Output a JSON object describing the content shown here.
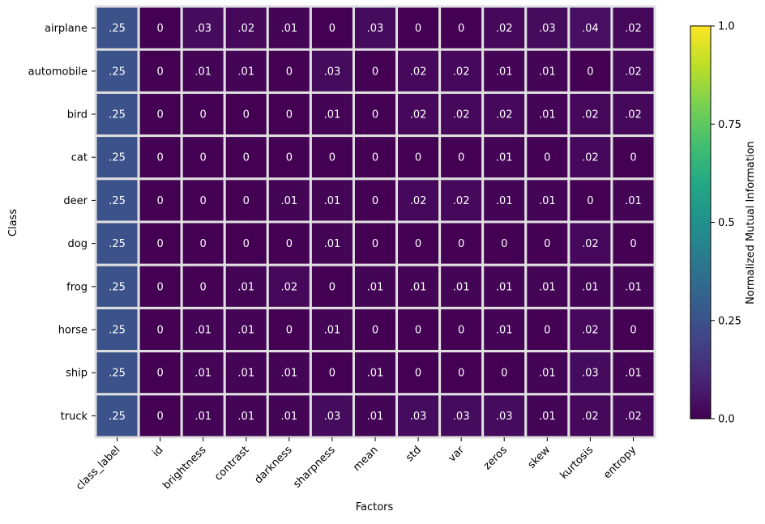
{
  "chart_data": {
    "type": "heatmap",
    "title": "",
    "xlabel": "Factors",
    "ylabel": "Class",
    "colorbar": {
      "label": "Normalized Mutual Information",
      "range": [
        0.0,
        1.0
      ],
      "ticks": [
        "0.0",
        "0.25",
        "0.5",
        "0.75",
        "1.0"
      ],
      "tick_values": [
        0,
        0.25,
        0.5,
        0.75,
        1.0
      ],
      "colormap": "viridis"
    },
    "x": [
      "class_label",
      "id",
      "brightness",
      "contrast",
      "darkness",
      "sharpness",
      "mean",
      "std",
      "var",
      "zeros",
      "skew",
      "kurtosis",
      "entropy"
    ],
    "y": [
      "airplane",
      "automobile",
      "bird",
      "cat",
      "deer",
      "dog",
      "frog",
      "horse",
      "ship",
      "truck"
    ],
    "values": [
      [
        0.25,
        0,
        0.03,
        0.02,
        0.01,
        0,
        0.03,
        0,
        0,
        0.02,
        0.03,
        0.04,
        0.02
      ],
      [
        0.25,
        0,
        0.01,
        0.01,
        0,
        0.03,
        0,
        0.02,
        0.02,
        0.01,
        0.01,
        0,
        0.02
      ],
      [
        0.25,
        0,
        0,
        0,
        0,
        0.01,
        0,
        0.02,
        0.02,
        0.02,
        0.01,
        0.02,
        0.02
      ],
      [
        0.25,
        0,
        0,
        0,
        0,
        0,
        0,
        0,
        0,
        0.01,
        0,
        0.02,
        0
      ],
      [
        0.25,
        0,
        0,
        0,
        0.01,
        0.01,
        0,
        0.02,
        0.02,
        0.01,
        0.01,
        0,
        0.01
      ],
      [
        0.25,
        0,
        0,
        0,
        0,
        0.01,
        0,
        0,
        0,
        0,
        0,
        0.02,
        0
      ],
      [
        0.25,
        0,
        0,
        0.01,
        0.02,
        0,
        0.01,
        0.01,
        0.01,
        0.01,
        0.01,
        0.01,
        0.01
      ],
      [
        0.25,
        0,
        0.01,
        0.01,
        0,
        0.01,
        0,
        0,
        0,
        0.01,
        0,
        0.02,
        0
      ],
      [
        0.25,
        0,
        0.01,
        0.01,
        0.01,
        0,
        0.01,
        0,
        0,
        0,
        0.01,
        0.03,
        0.01
      ],
      [
        0.25,
        0,
        0.01,
        0.01,
        0.01,
        0.03,
        0.01,
        0.03,
        0.03,
        0.03,
        0.01,
        0.02,
        0.02
      ]
    ],
    "cell_labels": [
      [
        ".25",
        "0",
        ".03",
        ".02",
        ".01",
        "0",
        ".03",
        "0",
        "0",
        ".02",
        ".03",
        ".04",
        ".02"
      ],
      [
        ".25",
        "0",
        ".01",
        ".01",
        "0",
        ".03",
        "0",
        ".02",
        ".02",
        ".01",
        ".01",
        "0",
        ".02"
      ],
      [
        ".25",
        "0",
        "0",
        "0",
        "0",
        ".01",
        "0",
        ".02",
        ".02",
        ".02",
        ".01",
        ".02",
        ".02"
      ],
      [
        ".25",
        "0",
        "0",
        "0",
        "0",
        "0",
        "0",
        "0",
        "0",
        ".01",
        "0",
        ".02",
        "0"
      ],
      [
        ".25",
        "0",
        "0",
        "0",
        ".01",
        ".01",
        "0",
        ".02",
        ".02",
        ".01",
        ".01",
        "0",
        ".01"
      ],
      [
        ".25",
        "0",
        "0",
        "0",
        "0",
        ".01",
        "0",
        "0",
        "0",
        "0",
        "0",
        ".02",
        "0"
      ],
      [
        ".25",
        "0",
        "0",
        ".01",
        ".02",
        "0",
        ".01",
        ".01",
        ".01",
        ".01",
        ".01",
        ".01",
        ".01"
      ],
      [
        ".25",
        "0",
        ".01",
        ".01",
        "0",
        ".01",
        "0",
        "0",
        "0",
        ".01",
        "0",
        ".02",
        "0"
      ],
      [
        ".25",
        "0",
        ".01",
        ".01",
        ".01",
        "0",
        ".01",
        "0",
        "0",
        "0",
        ".01",
        ".03",
        ".01"
      ],
      [
        ".25",
        "0",
        ".01",
        ".01",
        ".01",
        ".03",
        ".01",
        ".03",
        ".03",
        ".03",
        ".01",
        ".02",
        ".02"
      ]
    ],
    "grid": false,
    "cell_border_color": "#e0e0e0"
  }
}
